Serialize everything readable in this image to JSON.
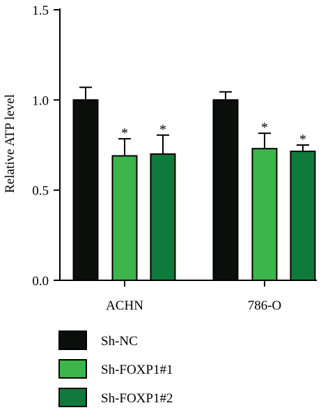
{
  "chart_data": {
    "type": "bar",
    "title": "",
    "xlabel": "",
    "ylabel": "Relative ATP level",
    "ylim": [
      0,
      1.5
    ],
    "yticks": [
      0.0,
      0.5,
      1.0,
      1.5
    ],
    "ytick_labels": [
      "0.0",
      "0.5",
      "1.0",
      "1.5"
    ],
    "categories": [
      "ACHN",
      "786-O"
    ],
    "series": [
      {
        "name": "Sh-NC",
        "values": [
          1.0,
          1.0
        ],
        "errors": [
          0.07,
          0.045
        ],
        "annotations": [
          "",
          ""
        ],
        "color": "#0b0f0c"
      },
      {
        "name": "Sh-FOXP1#1",
        "values": [
          0.69,
          0.73
        ],
        "errors": [
          0.095,
          0.085
        ],
        "annotations": [
          "*",
          "*"
        ],
        "color": "#3cb54a"
      },
      {
        "name": "Sh-FOXP1#2",
        "values": [
          0.7,
          0.715
        ],
        "errors": [
          0.105,
          0.035
        ],
        "annotations": [
          "*",
          "*"
        ],
        "color": "#0f7a3c"
      }
    ],
    "legend_position": "bottom-left",
    "grid": false
  }
}
